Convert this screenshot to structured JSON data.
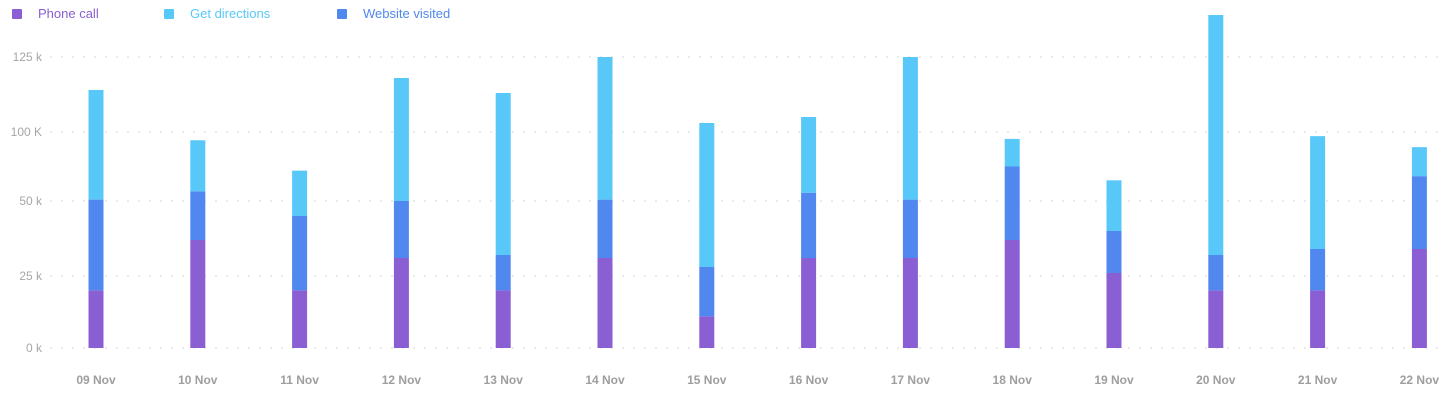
{
  "legend": [
    {
      "label": "Phone call",
      "color": "#8a5fd3"
    },
    {
      "label": "Get directions",
      "color": "#58c8f8"
    },
    {
      "label": "Website visited",
      "color": "#5088f0"
    }
  ],
  "chart_data": {
    "type": "bar",
    "stacked": true,
    "title": "",
    "xlabel": "",
    "ylabel": "",
    "grid": true,
    "legend_position": "top-left",
    "y_ticks": [
      {
        "value": 0,
        "label": "0 k"
      },
      {
        "value": 25,
        "label": "25 k"
      },
      {
        "value": 50,
        "label": "50 k"
      },
      {
        "value": 100,
        "label": "100 K"
      },
      {
        "value": 125,
        "label": "125 k"
      }
    ],
    "categories": [
      "09 Nov",
      "10 Nov",
      "11 Nov",
      "12 Nov",
      "13 Nov",
      "14 Nov",
      "15 Nov",
      "16 Nov",
      "17 Nov",
      "18 Nov",
      "19 Nov",
      "20 Nov",
      "21 Nov",
      "22 Nov"
    ],
    "series": [
      {
        "name": "Phone call",
        "color": "#8a5fd3",
        "values": [
          20,
          37,
          20,
          31,
          20,
          31,
          11,
          31,
          31,
          37,
          26,
          20,
          20,
          34
        ]
      },
      {
        "name": "Website visited",
        "color": "#5088f0",
        "values": [
          31,
          20,
          25,
          19,
          12,
          20,
          17,
          25,
          20,
          38,
          14,
          12,
          14,
          34
        ]
      },
      {
        "name": "Get directions",
        "color": "#58c8f8",
        "values": [
          63,
          37,
          27,
          68,
          81,
          74,
          75,
          49,
          74,
          20,
          25,
          107,
          63,
          21
        ]
      }
    ]
  }
}
